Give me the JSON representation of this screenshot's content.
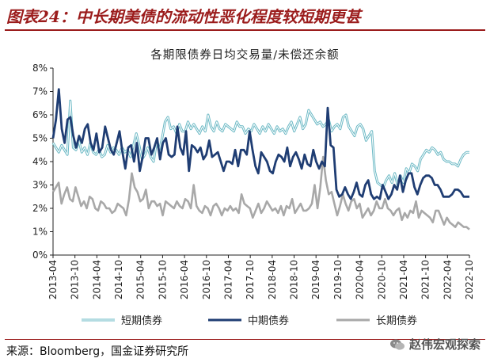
{
  "header": {
    "figure_title": "图表24：中长期美债的流动性恶化程度较短期更甚"
  },
  "footer": {
    "source": "来源：Bloomberg，国金证券研究所",
    "watermark": "赵伟宏观探索",
    "watermark_icon": "wechat-icon"
  },
  "colors": {
    "short": "#6ab8c4",
    "mid": "#1f3d73",
    "long": "#a8a8a8",
    "title": "#9b1c1c"
  },
  "chart_data": {
    "type": "line",
    "title": "各期限债券日均交易量/未偿还余额",
    "xlabel": "",
    "ylabel": "",
    "ylim": [
      0,
      8
    ],
    "y_ticks": [
      "0%",
      "1%",
      "2%",
      "3%",
      "4%",
      "5%",
      "6%",
      "7%",
      "8%"
    ],
    "x_ticks": [
      "2013-04",
      "2013-10",
      "2014-04",
      "2014-10",
      "2015-04",
      "2015-10",
      "2016-04",
      "2016-10",
      "2017-04",
      "2017-10",
      "2018-04",
      "2018-10",
      "2019-04",
      "2019-10",
      "2020-04",
      "2020-10",
      "2021-04",
      "2021-10",
      "2022-04",
      "2022-10"
    ],
    "legend_position": "bottom",
    "x_start": "2013-04",
    "x_end": "2022-10",
    "series": [
      {
        "name": "短期债券",
        "key": "short",
        "values": [
          4.8,
          4.6,
          4.4,
          4.7,
          4.5,
          4.3,
          6.6,
          4.6,
          4.5,
          4.9,
          4.4,
          4.6,
          4.3,
          4.8,
          4.4,
          4.3,
          4.5,
          4.2,
          4.3,
          4.7,
          4.4,
          4.6,
          4.5,
          4.3,
          4.6,
          4.4,
          4.5,
          4.2,
          4.7,
          5.2,
          4.7,
          4.1,
          4.3,
          4.6,
          4.2,
          4.0,
          4.8,
          4.5,
          5.0,
          5.7,
          5.9,
          5.4,
          5.5,
          5.2,
          5.6,
          5.3,
          5.3,
          5.7,
          5.4,
          5.6,
          5.4,
          5.2,
          5.5,
          5.3,
          6.0,
          5.5,
          5.3,
          5.7,
          5.4,
          5.3,
          5.6,
          5.5,
          5.4,
          5.3,
          5.7,
          5.5,
          5.5,
          5.2,
          5.4,
          5.3,
          5.6,
          5.4,
          5.2,
          5.5,
          5.3,
          5.6,
          5.4,
          5.2,
          5.5,
          5.3,
          5.4,
          5.2,
          5.5,
          5.7,
          5.3,
          5.6,
          5.9,
          5.4,
          5.6,
          6.2,
          6.0,
          5.8,
          5.6,
          5.7,
          5.5,
          5.6,
          5.8,
          5.3,
          5.5,
          5.6,
          5.4,
          5.9,
          6.0,
          5.5,
          5.3,
          5.1,
          5.5,
          5.6,
          5.4,
          4.9,
          5.1,
          5.3,
          3.6,
          3.1,
          3.0,
          2.9,
          3.2,
          3.4,
          3.1,
          3.5,
          3.0,
          3.4,
          3.1,
          3.7,
          3.5,
          3.9,
          3.8,
          3.6,
          4.1,
          4.3,
          4.5,
          4.4,
          4.6,
          4.5,
          4.3,
          4.4,
          4.1,
          4.0,
          4.0,
          3.9,
          3.9,
          3.8,
          4.1,
          4.3,
          4.4,
          4.4
        ]
      },
      {
        "name": "中期债券",
        "key": "mid",
        "values": [
          5.0,
          5.8,
          7.1,
          5.4,
          4.8,
          5.8,
          5.9,
          5.1,
          4.6,
          5.1,
          4.8,
          5.4,
          5.6,
          4.8,
          4.5,
          5.2,
          4.4,
          4.6,
          5.5,
          5.0,
          4.5,
          4.3,
          4.8,
          5.3,
          4.4,
          3.7,
          4.6,
          4.7,
          4.0,
          4.8,
          3.6,
          4.2,
          5.0,
          5.0,
          4.3,
          4.6,
          5.0,
          4.1,
          4.8,
          5.0,
          4.3,
          4.2,
          4.3,
          5.5,
          4.6,
          4.3,
          5.3,
          3.6,
          4.7,
          4.6,
          4.4,
          4.6,
          4.1,
          4.3,
          4.9,
          4.2,
          4.3,
          4.4,
          4.0,
          3.6,
          4.0,
          4.0,
          3.9,
          4.5,
          3.8,
          4.5,
          4.5,
          4.3,
          5.3,
          4.5,
          3.8,
          3.5,
          4.4,
          4.2,
          4.0,
          3.6,
          3.5,
          4.0,
          4.3,
          4.2,
          4.0,
          4.6,
          3.8,
          4.2,
          4.4,
          4.1,
          3.7,
          4.3,
          3.9,
          3.8,
          4.5,
          4.0,
          3.7,
          4.0,
          3.8,
          6.3,
          4.7,
          4.6,
          2.8,
          2.5,
          2.6,
          2.9,
          2.6,
          2.4,
          2.7,
          3.1,
          2.6,
          2.5,
          3.0,
          3.2,
          2.6,
          2.4,
          2.5,
          2.4,
          3.0,
          2.7,
          2.4,
          2.6,
          3.0,
          2.8,
          3.4,
          2.7,
          3.2,
          3.5,
          3.5,
          2.9,
          2.6,
          3.0,
          3.3,
          3.4,
          3.4,
          3.3,
          3.0,
          3.0,
          2.8,
          2.5,
          2.5,
          2.5,
          2.6,
          2.8,
          2.8,
          2.7,
          2.5,
          2.5,
          2.5
        ]
      },
      {
        "name": "长期债券",
        "key": "long",
        "values": [
          2.7,
          2.9,
          3.1,
          2.2,
          2.6,
          2.9,
          2.4,
          2.3,
          2.9,
          2.5,
          2.1,
          2.3,
          2.0,
          2.5,
          2.4,
          2.0,
          1.9,
          2.3,
          2.2,
          2.0,
          2.0,
          1.8,
          1.9,
          2.2,
          2.1,
          2.0,
          1.7,
          2.4,
          3.5,
          2.9,
          2.7,
          2.3,
          2.4,
          2.8,
          2.0,
          2.3,
          2.3,
          2.1,
          2.2,
          1.7,
          2.3,
          2.2,
          2.1,
          2.0,
          2.3,
          2.1,
          2.0,
          2.4,
          2.3,
          2.0,
          3.0,
          2.1,
          1.9,
          1.8,
          2.1,
          2.0,
          1.7,
          2.1,
          2.2,
          2.0,
          1.7,
          2.0,
          1.9,
          2.1,
          1.9,
          2.0,
          1.8,
          2.6,
          2.2,
          2.1,
          2.0,
          1.6,
          1.9,
          2.2,
          1.8,
          2.0,
          2.3,
          2.1,
          1.9,
          2.0,
          1.8,
          2.1,
          1.7,
          2.1,
          2.0,
          2.4,
          1.8,
          2.0,
          2.2,
          1.9,
          1.9,
          2.0,
          2.2,
          3.0,
          2.0,
          2.9,
          4.2,
          3.2,
          2.6,
          2.7,
          2.2,
          1.7,
          2.1,
          2.6,
          2.2,
          1.9,
          2.3,
          2.4,
          2.0,
          2.2,
          1.6,
          1.8,
          2.0,
          1.7,
          1.9,
          2.3,
          2.0,
          2.0,
          2.4,
          2.0,
          1.9,
          1.7,
          1.9,
          2.0,
          1.5,
          1.8,
          1.6,
          1.9,
          1.8,
          2.3,
          1.6,
          1.9,
          1.8,
          1.7,
          1.6,
          1.4,
          1.9,
          1.9,
          1.6,
          1.3,
          1.6,
          1.4,
          1.3,
          1.2,
          1.4,
          1.3,
          1.2,
          1.2,
          1.1
        ]
      }
    ]
  }
}
